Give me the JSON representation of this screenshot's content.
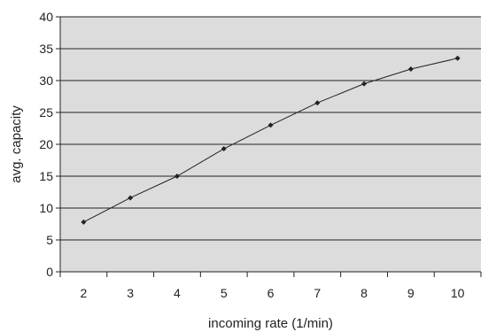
{
  "chart_data": {
    "type": "line",
    "title": "",
    "xlabel": "incoming rate (1/min)",
    "ylabel": "avg. capacity",
    "x": [
      2,
      3,
      4,
      5,
      6,
      7,
      8,
      9,
      10
    ],
    "x_tick_labels": [
      "2",
      "3",
      "4",
      "5",
      "6",
      "7",
      "8",
      "9",
      "10"
    ],
    "xlim": [
      1.5,
      10.5
    ],
    "ylim": [
      0,
      40
    ],
    "y_ticks": [
      0,
      5,
      10,
      15,
      20,
      25,
      30,
      35,
      40
    ],
    "y_tick_labels": [
      "0",
      "5",
      "10",
      "15",
      "20",
      "25",
      "30",
      "35",
      "40"
    ],
    "grid": {
      "horizontal": true,
      "vertical": false
    },
    "legend": "none",
    "colors": {
      "plot_background": "#dcdcdc",
      "gridline": "#222222",
      "series": "#222222",
      "axis": "#222222"
    },
    "series": [
      {
        "values": [
          7.8,
          11.6,
          15.0,
          19.3,
          23.0,
          26.5,
          29.5,
          31.8,
          33.5
        ]
      }
    ]
  }
}
